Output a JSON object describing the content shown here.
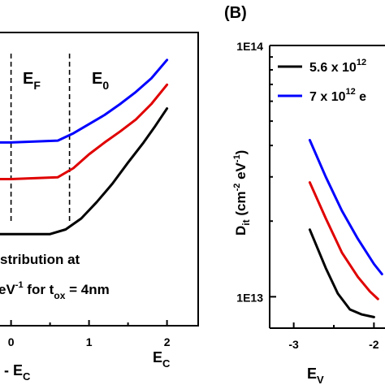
{
  "panel_b_label": "(B)",
  "chart_data": [
    {
      "type": "line",
      "panel": "A",
      "xlim": [
        -0.6,
        2.4
      ],
      "ylim": [
        0,
        3.2
      ],
      "x_ticks": [
        {
          "v": 0,
          "label": "0"
        },
        {
          "v": 1,
          "label": "1"
        },
        {
          "v": 2,
          "label": "2"
        }
      ],
      "x_end_label": "E",
      "x_end_sub": "C",
      "xlabel_main": "E - E",
      "xlabel_sub": "C",
      "marker_lines": [
        {
          "x": 0,
          "label": "E",
          "sub": "F"
        },
        {
          "x": 0.75,
          "label": "E",
          "sub": "0"
        }
      ],
      "annotation": {
        "line1": "stribution at",
        "line2_main": "eV",
        "line2_sup": "-1",
        "line2_mid": " for t",
        "line2_sub": "ox",
        "line2_end": " = 4nm"
      },
      "series": [
        {
          "color": "#0000ff",
          "points": [
            [
              -0.6,
              2.0
            ],
            [
              0,
              2.0
            ],
            [
              0.6,
              2.02
            ],
            [
              0.8,
              2.1
            ],
            [
              1.0,
              2.2
            ],
            [
              1.2,
              2.3
            ],
            [
              1.4,
              2.42
            ],
            [
              1.6,
              2.55
            ],
            [
              1.8,
              2.7
            ],
            [
              2.0,
              2.9
            ]
          ]
        },
        {
          "color": "#e00000",
          "points": [
            [
              -0.6,
              1.6
            ],
            [
              0,
              1.6
            ],
            [
              0.6,
              1.62
            ],
            [
              0.8,
              1.72
            ],
            [
              1.0,
              1.87
            ],
            [
              1.2,
              2.0
            ],
            [
              1.4,
              2.12
            ],
            [
              1.6,
              2.25
            ],
            [
              1.8,
              2.42
            ],
            [
              2.0,
              2.63
            ]
          ]
        },
        {
          "color": "#000000",
          "points": [
            [
              -0.6,
              1.0
            ],
            [
              0,
              1.0
            ],
            [
              0.5,
              1.0
            ],
            [
              0.7,
              1.05
            ],
            [
              0.9,
              1.17
            ],
            [
              1.1,
              1.35
            ],
            [
              1.3,
              1.55
            ],
            [
              1.5,
              1.78
            ],
            [
              1.7,
              2.0
            ],
            [
              1.85,
              2.18
            ],
            [
              2.0,
              2.37
            ]
          ]
        }
      ]
    },
    {
      "type": "line",
      "panel": "B",
      "y_scale": "log",
      "ylim": [
        7500000000000,
        100000000000000
      ],
      "y_ticks": [
        {
          "v": 100000000000000,
          "label": "1E14"
        },
        {
          "v": 10000000000000,
          "label": "1E13"
        }
      ],
      "xlim": [
        -3.3,
        -1.7
      ],
      "x_ticks": [
        {
          "v": -3,
          "label": "-3"
        },
        {
          "v": -2,
          "label": "-2"
        }
      ],
      "ylabel_main": "D",
      "ylabel_sub": "it",
      "ylabel_unit_open": " (cm",
      "ylabel_sup1": "-2",
      "ylabel_unit_mid": " eV",
      "ylabel_sup2": "-1",
      "ylabel_unit_close": ")",
      "xlabel_main": "E",
      "xlabel_sub": "V",
      "legend_position": "top-right",
      "legend": [
        {
          "color": "#000000",
          "text": "5.6 x 10",
          "sup": "12"
        },
        {
          "color": "#0000ff",
          "text": "7 x 10",
          "sup": "12",
          "tail": " e"
        }
      ],
      "series": [
        {
          "color": "#0000ff",
          "points": [
            [
              -2.8,
              42000000000000
            ],
            [
              -2.6,
              30000000000000
            ],
            [
              -2.4,
              22000000000000
            ],
            [
              -2.2,
              17000000000000
            ],
            [
              -2.0,
              13500000000000
            ],
            [
              -1.9,
              12300000000000
            ]
          ]
        },
        {
          "color": "#e00000",
          "points": [
            [
              -2.8,
              28500000000000
            ],
            [
              -2.6,
              20500000000000
            ],
            [
              -2.4,
              15000000000000
            ],
            [
              -2.2,
              12000000000000
            ],
            [
              -2.05,
              10500000000000
            ],
            [
              -1.95,
              9800000000000
            ]
          ]
        },
        {
          "color": "#000000",
          "points": [
            [
              -2.8,
              18500000000000
            ],
            [
              -2.6,
              13000000000000
            ],
            [
              -2.45,
              10300000000000
            ],
            [
              -2.3,
              8900000000000
            ],
            [
              -2.15,
              8500000000000
            ],
            [
              -2.0,
              8300000000000
            ]
          ]
        }
      ]
    }
  ]
}
